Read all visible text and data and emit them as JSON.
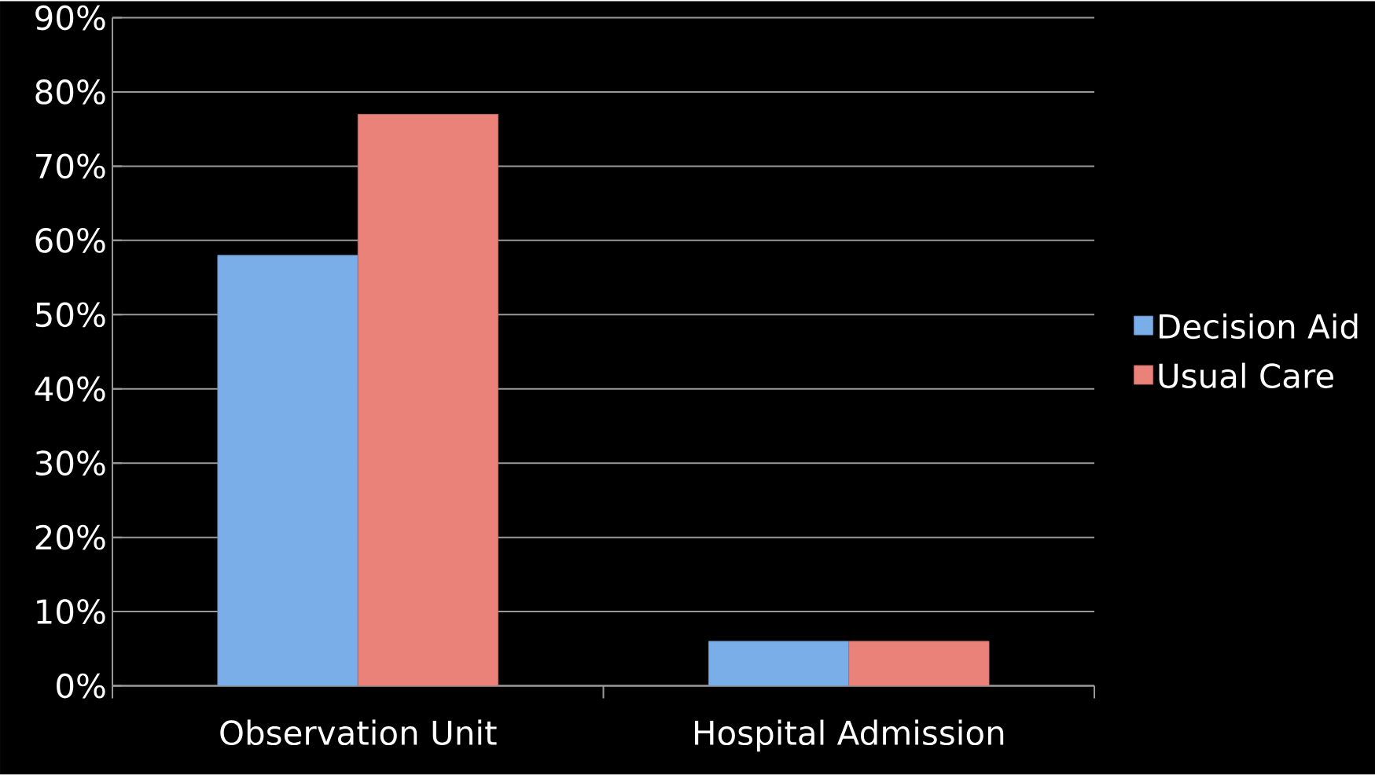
{
  "chart_data": {
    "type": "bar",
    "categories": [
      "Observation Unit",
      "Hospital Admission"
    ],
    "series": [
      {
        "name": "Decision Aid",
        "color": "#7aaee8",
        "values": [
          58,
          6
        ]
      },
      {
        "name": "Usual Care",
        "color": "#ea827a",
        "values": [
          77,
          6
        ]
      }
    ],
    "ylim": [
      0,
      90
    ],
    "yticks": [
      {
        "value": 0,
        "label": "0%"
      },
      {
        "value": 10,
        "label": "10%"
      },
      {
        "value": 20,
        "label": "20%"
      },
      {
        "value": 30,
        "label": "30%"
      },
      {
        "value": 40,
        "label": "40%"
      },
      {
        "value": 50,
        "label": "50%"
      },
      {
        "value": 60,
        "label": "60%"
      },
      {
        "value": 70,
        "label": "70%"
      },
      {
        "value": 80,
        "label": "80%"
      },
      {
        "value": 90,
        "label": "90%"
      }
    ],
    "grid": "y",
    "legend": "right"
  }
}
